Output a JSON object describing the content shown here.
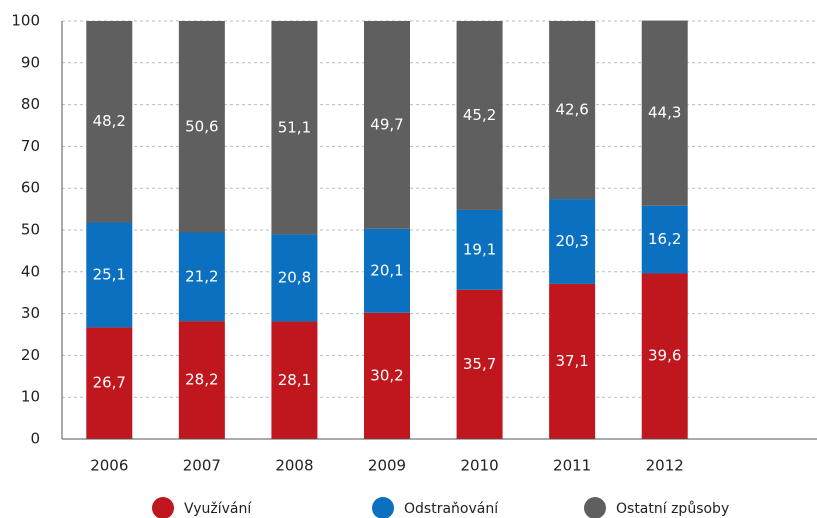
{
  "chart_data": {
    "type": "stacked_bar",
    "categories": [
      "2006",
      "2007",
      "2008",
      "2009",
      "2010",
      "2011",
      "2012"
    ],
    "series": [
      {
        "name": "Využívání",
        "color": "#c0161d",
        "values": [
          26.7,
          28.2,
          28.1,
          30.2,
          35.7,
          37.1,
          39.6
        ],
        "value_labels": [
          "26,7",
          "28,2",
          "28,1",
          "30,2",
          "35,7",
          "37,1",
          "39,6"
        ]
      },
      {
        "name": "Odstraňování",
        "color": "#0a70bf",
        "values": [
          25.1,
          21.2,
          20.8,
          20.1,
          19.1,
          20.3,
          16.2
        ],
        "value_labels": [
          "25,1",
          "21,2",
          "20,8",
          "20,1",
          "19,1",
          "20,3",
          "16,2"
        ]
      },
      {
        "name": "Ostatní způsoby",
        "color": "#5f5f60",
        "values": [
          48.2,
          50.6,
          51.1,
          49.7,
          45.2,
          42.6,
          44.3
        ],
        "value_labels": [
          "48,2",
          "50,6",
          "51,1",
          "49,7",
          "45,2",
          "42,6",
          "44,3"
        ]
      }
    ],
    "ylim": [
      0,
      100
    ],
    "yticks": [
      0,
      10,
      20,
      30,
      40,
      50,
      60,
      70,
      80,
      90,
      100
    ],
    "grid": true,
    "legend": "bottom"
  }
}
